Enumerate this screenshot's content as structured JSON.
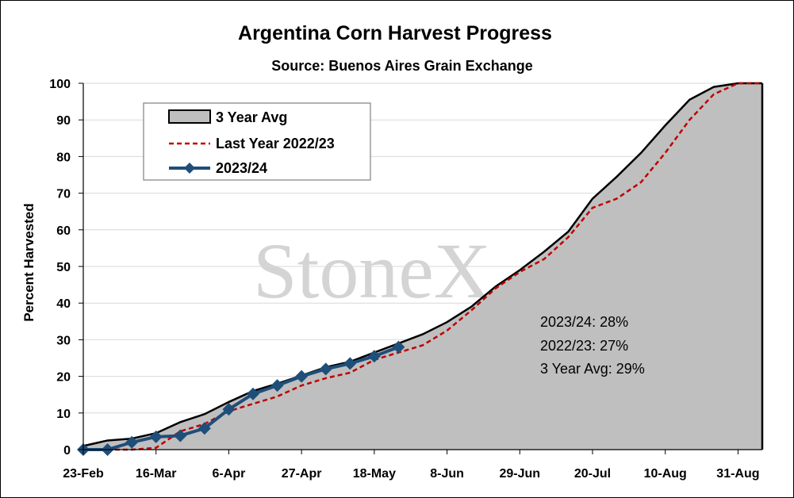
{
  "chart_data": {
    "type": "area",
    "title": "Argentina Corn Harvest Progress",
    "subtitle": "Source: Buenos Aires Grain Exchange",
    "ylabel": "Percent Harvested",
    "xlabel": "",
    "ylim": [
      0,
      100
    ],
    "yticks": [
      "0",
      "10",
      "20",
      "30",
      "40",
      "50",
      "60",
      "70",
      "80",
      "90",
      "100"
    ],
    "xticks": [
      "23-Feb",
      "16-Mar",
      "6-Apr",
      "27-Apr",
      "18-May",
      "8-Jun",
      "29-Jun",
      "20-Jul",
      "10-Aug",
      "31-Aug"
    ],
    "grid": true,
    "legend_position": "top-left",
    "watermark": "StoneX",
    "watermark_mark": "®",
    "colors": {
      "avg_fill": "#bfbfbf",
      "avg_line": "#000000",
      "last_year": "#c00000",
      "current": "#1f4e79"
    },
    "series": [
      {
        "name": "3 Year Avg",
        "style": "area",
        "values": [
          1,
          2.5,
          3,
          4.5,
          7.5,
          9.7,
          13,
          16,
          18,
          20.2,
          22.5,
          24,
          26.5,
          29,
          31.5,
          34.8,
          39,
          44.5,
          49,
          54,
          59.5,
          68.5,
          74.5,
          81,
          88.5,
          95.5,
          99,
          100,
          100
        ]
      },
      {
        "name": "Last Year 2022/23",
        "style": "dashed",
        "values": [
          0,
          0,
          0,
          0.5,
          5,
          7,
          10.5,
          12.5,
          14.5,
          17.5,
          19.5,
          21,
          24.5,
          26.5,
          28.5,
          32.5,
          38,
          44,
          48.5,
          52,
          58,
          66,
          68.5,
          73,
          81,
          90,
          97,
          100,
          100
        ]
      },
      {
        "name": "2023/24",
        "style": "line-marker",
        "values": [
          0,
          0,
          2,
          3.5,
          3.8,
          5.8,
          11,
          15.2,
          17.5,
          20,
          22,
          23.5,
          25.5,
          28
        ]
      }
    ],
    "annotations": [
      "2023/24: 28%",
      "2022/23: 27%",
      "3 Year Avg: 29%"
    ]
  }
}
